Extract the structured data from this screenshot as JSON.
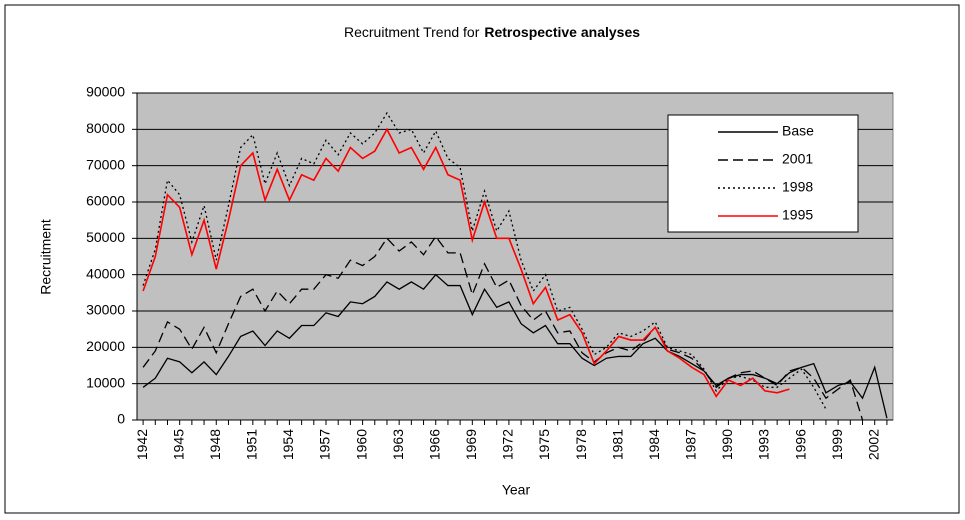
{
  "chart_data": {
    "type": "line",
    "title": [
      "Recruitment Trend for",
      "Retrospective analyses"
    ],
    "x_label": "Year",
    "y_label": "Recruitment",
    "x": [
      1942,
      1943,
      1944,
      1945,
      1946,
      1947,
      1948,
      1949,
      1950,
      1951,
      1952,
      1953,
      1954,
      1955,
      1956,
      1957,
      1958,
      1959,
      1960,
      1961,
      1962,
      1963,
      1964,
      1965,
      1966,
      1967,
      1968,
      1969,
      1970,
      1971,
      1972,
      1973,
      1974,
      1975,
      1976,
      1977,
      1978,
      1979,
      1980,
      1981,
      1982,
      1983,
      1984,
      1985,
      1986,
      1987,
      1988,
      1989,
      1990,
      1991,
      1992,
      1993,
      1994,
      1995,
      1996,
      1997,
      1998,
      1999,
      2000,
      2001,
      2002,
      2003
    ],
    "xlim": [
      1941.5,
      2003.5
    ],
    "xticks": [
      1942,
      1945,
      1948,
      1951,
      1954,
      1957,
      1960,
      1963,
      1966,
      1969,
      1972,
      1975,
      1978,
      1981,
      1984,
      1987,
      1990,
      1993,
      1996,
      1999,
      2002
    ],
    "ylim": [
      0,
      90000
    ],
    "yticks": [
      0,
      10000,
      20000,
      30000,
      40000,
      50000,
      60000,
      70000,
      80000,
      90000
    ],
    "grid": true,
    "series": [
      {
        "name": "Base",
        "color": "#000000",
        "dash": "solid",
        "values": [
          9000,
          11500,
          17000,
          16000,
          13000,
          16000,
          12500,
          17500,
          23000,
          24500,
          20500,
          24500,
          22500,
          26000,
          26000,
          29500,
          28500,
          32500,
          32000,
          34000,
          38000,
          36000,
          38000,
          36000,
          40000,
          37000,
          37000,
          29000,
          36000,
          31000,
          32500,
          26500,
          24000,
          26000,
          21000,
          21000,
          17000,
          15000,
          17000,
          17500,
          17500,
          21000,
          22500,
          19000,
          17500,
          15500,
          13500,
          9500,
          11500,
          12500,
          12500,
          11500,
          10000,
          13000,
          14500,
          15500,
          7500,
          9500,
          10500,
          6000,
          14500,
          500
        ]
      },
      {
        "name": "2001",
        "color": "#000000",
        "dash": "dashed",
        "values": [
          14500,
          19000,
          27000,
          25000,
          19500,
          25500,
          18500,
          26500,
          34000,
          36000,
          30000,
          35500,
          32000,
          36000,
          36000,
          40000,
          39000,
          44000,
          42500,
          45000,
          50000,
          46500,
          49000,
          45500,
          50500,
          46000,
          46000,
          34500,
          43000,
          36500,
          38500,
          31500,
          27500,
          30000,
          24000,
          24500,
          18500,
          16000,
          18500,
          20000,
          19000,
          21500,
          25500,
          19500,
          18500,
          17000,
          13500,
          9000,
          11500,
          13000,
          13500,
          11500,
          9500,
          13500,
          14500,
          11500,
          6000,
          8500,
          11000,
          0,
          null,
          null
        ]
      },
      {
        "name": "1998",
        "color": "#000000",
        "dash": "dotted",
        "values": [
          37000,
          47000,
          66000,
          62000,
          49000,
          59000,
          44000,
          59000,
          75000,
          78500,
          65000,
          73500,
          64500,
          72000,
          70500,
          77000,
          73000,
          79000,
          76000,
          79000,
          84500,
          79000,
          80000,
          73500,
          79500,
          72000,
          69500,
          52000,
          63000,
          52000,
          57500,
          44000,
          35500,
          40000,
          30000,
          31000,
          25000,
          18000,
          20000,
          24000,
          23000,
          24500,
          27000,
          20000,
          19000,
          18000,
          14000,
          8000,
          11500,
          12000,
          11000,
          9000,
          9000,
          11500,
          14000,
          9000,
          3000,
          null,
          null,
          null,
          null,
          null
        ]
      },
      {
        "name": "1995",
        "color": "#ff0000",
        "dash": "solid",
        "values": [
          35500,
          45000,
          62000,
          58500,
          45500,
          55000,
          41500,
          55000,
          70000,
          73500,
          60500,
          69000,
          60500,
          67500,
          66000,
          72000,
          68500,
          75000,
          72000,
          74000,
          80000,
          73500,
          75000,
          69000,
          75000,
          67500,
          66000,
          49500,
          60000,
          50000,
          50000,
          41500,
          32000,
          36500,
          27500,
          29000,
          24000,
          15500,
          19000,
          23000,
          22000,
          22000,
          25500,
          19000,
          17000,
          14500,
          12500,
          6500,
          11000,
          9500,
          11500,
          8000,
          7500,
          8500,
          null,
          null,
          null,
          null,
          null,
          null,
          null,
          null
        ]
      }
    ]
  }
}
